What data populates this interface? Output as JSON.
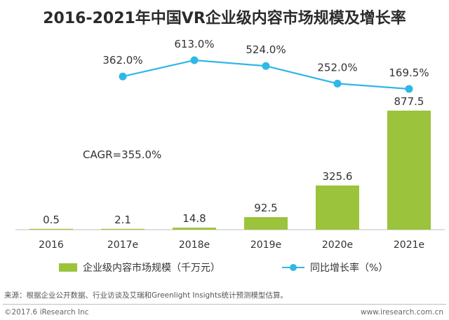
{
  "title": "2016-2021年中国VR企业级内容市场规模及增长率",
  "colors": {
    "bar": "#9bc33b",
    "line": "#2fb7e6",
    "axis": "#bfbfbf"
  },
  "chart_data": {
    "type": "bar+line",
    "categories": [
      "2016",
      "2017e",
      "2018e",
      "2019e",
      "2020e",
      "2021e"
    ],
    "series": [
      {
        "name": "企业级内容市场规模（千万元）",
        "type": "bar",
        "values": [
          0.5,
          2.1,
          14.8,
          92.5,
          325.6,
          877.5
        ],
        "labels": [
          "0.5",
          "2.1",
          "14.8",
          "92.5",
          "325.6",
          "877.5"
        ]
      },
      {
        "name": "同比增长率（%）",
        "type": "line",
        "x": [
          "2017e",
          "2018e",
          "2019e",
          "2020e",
          "2021e"
        ],
        "values": [
          362.0,
          613.0,
          524.0,
          252.0,
          169.5
        ],
        "labels": [
          "362.0%",
          "613.0%",
          "524.0%",
          "252.0%",
          "169.5%"
        ]
      }
    ],
    "annotation": "CAGR=355.0%",
    "legend_position": "bottom",
    "grid": false
  },
  "legend": {
    "bar_label": "企业级内容市场规模（千万元）",
    "line_label": "同比增长率（%）"
  },
  "source": "来源：根据企业公开数据、行业访谈及艾瑞和Greenlight Insights统计预测模型估算。",
  "footer": {
    "copyright": "©2017.6 iResearch Inc",
    "website": "www.iresearch.com.cn"
  }
}
